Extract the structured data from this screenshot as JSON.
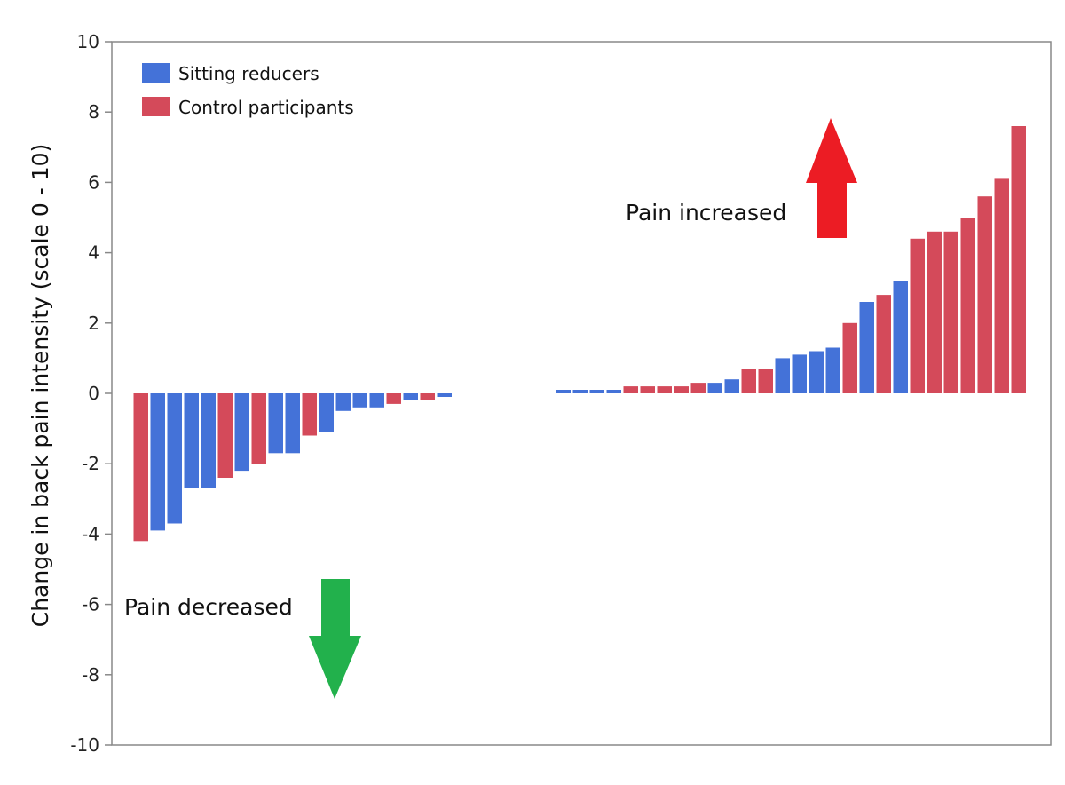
{
  "colors": {
    "sitting_reducers": "#4472d8",
    "control_participants": "#d44a5a",
    "arrow_up": "#ec1c24",
    "arrow_down": "#22b14c",
    "axis": "#888888"
  },
  "chart_data": {
    "type": "bar",
    "ylabel": "Change in back pain intensity (scale 0 - 10)",
    "ylim": [
      -10,
      10
    ],
    "yticks": [
      10,
      8,
      6,
      4,
      2,
      0,
      -2,
      -4,
      -6,
      -8,
      -10
    ],
    "yticklabels": [
      "10",
      "8",
      "6",
      "4",
      "2",
      "0",
      "-2",
      "-4",
      "-6",
      "-8",
      "-10"
    ],
    "grid": false,
    "legend": {
      "placement": "top-left",
      "entries": [
        {
          "label": "Sitting reducers",
          "color": "#4472d8"
        },
        {
          "label": "Control participants",
          "color": "#d44a5a"
        }
      ]
    },
    "annotations": [
      {
        "text": "Pain increased",
        "arrow": "up"
      },
      {
        "text": "Pain decreased",
        "arrow": "down"
      }
    ],
    "bars": [
      {
        "group": "control",
        "value": -4.2
      },
      {
        "group": "sitting",
        "value": -3.9
      },
      {
        "group": "sitting",
        "value": -3.7
      },
      {
        "group": "sitting",
        "value": -2.7
      },
      {
        "group": "sitting",
        "value": -2.7
      },
      {
        "group": "control",
        "value": -2.4
      },
      {
        "group": "sitting",
        "value": -2.2
      },
      {
        "group": "control",
        "value": -2.0
      },
      {
        "group": "sitting",
        "value": -1.7
      },
      {
        "group": "sitting",
        "value": -1.7
      },
      {
        "group": "control",
        "value": -1.2
      },
      {
        "group": "sitting",
        "value": -1.1
      },
      {
        "group": "sitting",
        "value": -0.5
      },
      {
        "group": "sitting",
        "value": -0.4
      },
      {
        "group": "sitting",
        "value": -0.4
      },
      {
        "group": "control",
        "value": -0.3
      },
      {
        "group": "sitting",
        "value": -0.2
      },
      {
        "group": "control",
        "value": -0.2
      },
      {
        "group": "sitting",
        "value": -0.1
      },
      {
        "group": "sitting",
        "value": 0.1
      },
      {
        "group": "sitting",
        "value": 0.1
      },
      {
        "group": "sitting",
        "value": 0.1
      },
      {
        "group": "sitting",
        "value": 0.1
      },
      {
        "group": "control",
        "value": 0.2
      },
      {
        "group": "control",
        "value": 0.2
      },
      {
        "group": "control",
        "value": 0.2
      },
      {
        "group": "control",
        "value": 0.2
      },
      {
        "group": "control",
        "value": 0.3
      },
      {
        "group": "sitting",
        "value": 0.3
      },
      {
        "group": "sitting",
        "value": 0.4
      },
      {
        "group": "control",
        "value": 0.7
      },
      {
        "group": "control",
        "value": 0.7
      },
      {
        "group": "sitting",
        "value": 1.0
      },
      {
        "group": "sitting",
        "value": 1.1
      },
      {
        "group": "sitting",
        "value": 1.2
      },
      {
        "group": "sitting",
        "value": 1.3
      },
      {
        "group": "control",
        "value": 2.0
      },
      {
        "group": "sitting",
        "value": 2.6
      },
      {
        "group": "control",
        "value": 2.8
      },
      {
        "group": "sitting",
        "value": 3.2
      },
      {
        "group": "control",
        "value": 4.4
      },
      {
        "group": "control",
        "value": 4.6
      },
      {
        "group": "control",
        "value": 4.6
      },
      {
        "group": "control",
        "value": 5.0
      },
      {
        "group": "control",
        "value": 5.6
      },
      {
        "group": "control",
        "value": 6.1
      },
      {
        "group": "control",
        "value": 7.6
      }
    ]
  }
}
